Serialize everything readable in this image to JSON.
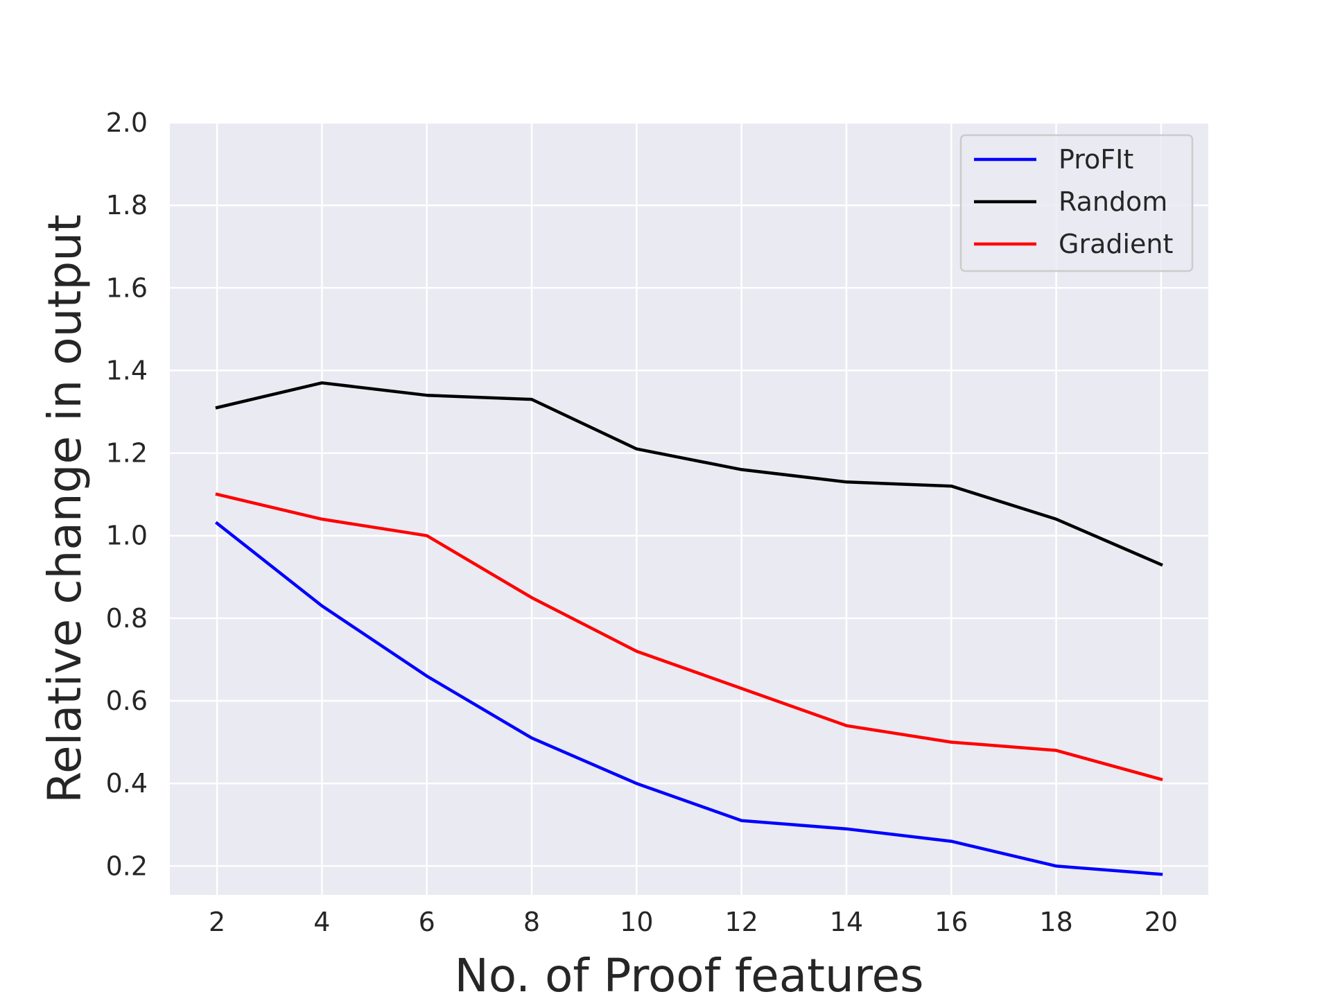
{
  "chart_data": {
    "type": "line",
    "title": "",
    "xlabel": "No. of Proof features",
    "ylabel": "Relative change in output",
    "x": [
      2,
      4,
      6,
      8,
      10,
      12,
      14,
      16,
      18,
      20
    ],
    "xlim": [
      1.1,
      20.9
    ],
    "ylim": [
      0.13,
      2.0
    ],
    "xticks": [
      "2",
      "4",
      "6",
      "8",
      "10",
      "12",
      "14",
      "16",
      "18",
      "20"
    ],
    "yticks": [
      "0.2",
      "0.4",
      "0.6",
      "0.8",
      "1.0",
      "1.2",
      "1.4",
      "1.6",
      "1.8",
      "2.0"
    ],
    "grid": true,
    "legend_position": "top-right",
    "background": "#eaeaf2",
    "series": [
      {
        "name": "ProFIt",
        "color": "#0000ff",
        "values": [
          1.03,
          0.83,
          0.66,
          0.51,
          0.4,
          0.31,
          0.29,
          0.26,
          0.2,
          0.18
        ]
      },
      {
        "name": "Random",
        "color": "#000000",
        "values": [
          1.31,
          1.37,
          1.34,
          1.33,
          1.21,
          1.16,
          1.13,
          1.12,
          1.04,
          0.93
        ]
      },
      {
        "name": "Gradient",
        "color": "#ff0000",
        "values": [
          1.1,
          1.04,
          1.0,
          0.85,
          0.72,
          0.63,
          0.54,
          0.5,
          0.48,
          0.41
        ]
      }
    ]
  }
}
